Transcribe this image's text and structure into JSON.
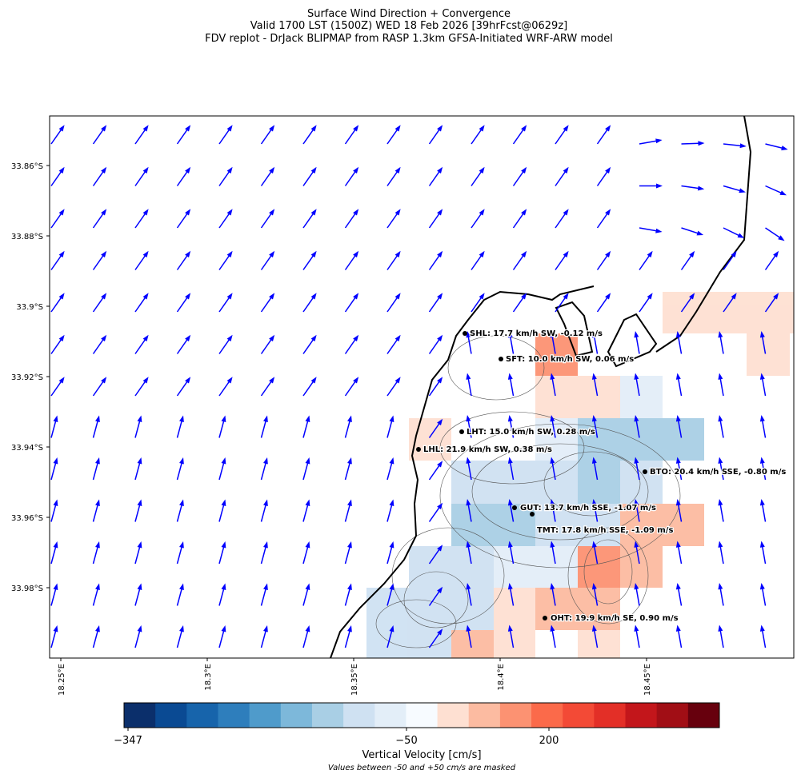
{
  "header": {
    "title_lines": [
      "Surface Wind Direction + Convergence",
      "Valid 1700 LST (1500Z) WED 18 Feb 2026 [39hrFcst@0629z]",
      "FDV replot - DrJack BLIPMAP from RASP 1.3km GFSA-Initiated WRF-ARW model"
    ]
  },
  "map": {
    "lat_labels": [
      "33.86°S",
      "33.88°S",
      "33.9°S",
      "33.92°S",
      "33.94°S",
      "33.96°S",
      "33.98°S"
    ],
    "lon_labels": [
      "18.25°E",
      "18.3°E",
      "18.35°E",
      "18.4°E",
      "18.45°E"
    ],
    "stations": [
      "SHL: 17.7 km/h SW, -0.12 m/s",
      "SFT: 10.0 km/h SW, 0.06 m/s",
      "LHT: 15.0 km/h SW, 0.28 m/s",
      "LHL: 21.9 km/h SW, 0.38 m/s",
      "BTO: 20.4 km/h SSE, -0.80 m/s",
      "GUT: 13.7 km/h SSE, -1.07 m/s",
      "TMT: 17.8 km/h SSE, -1.09 m/s",
      "OHT: 19.9 km/h SE, 0.90 m/s"
    ]
  },
  "colorbar": {
    "tick_labels": [
      "−347",
      "−50",
      "200"
    ],
    "title": "Vertical Velocity [cm/s]",
    "note": "Values between -50 and +50 cm/s are masked"
  }
}
